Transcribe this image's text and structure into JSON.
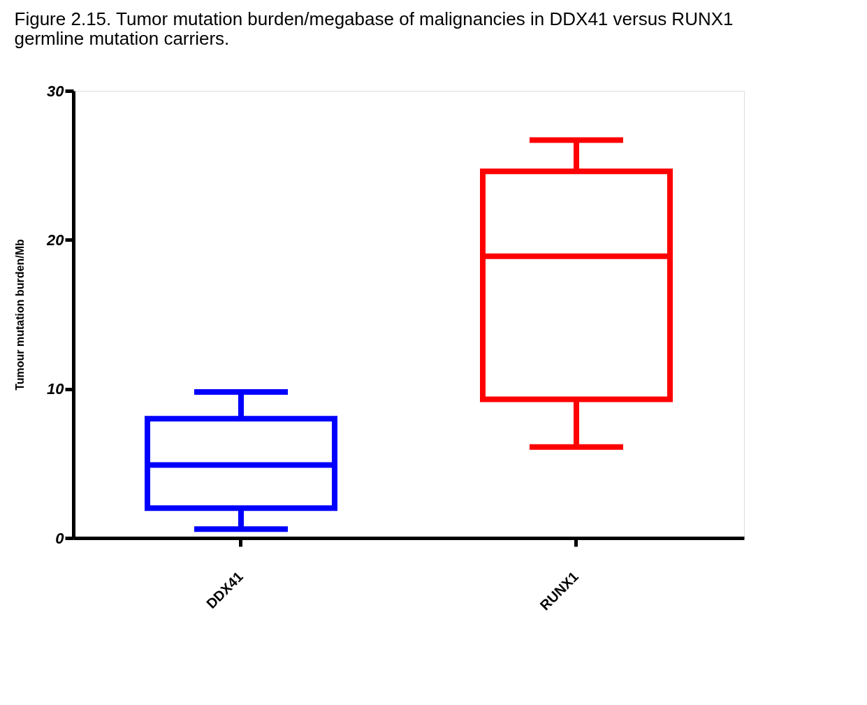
{
  "chart_data": {
    "type": "box",
    "title": "Figure 2.15. Tumor mutation burden/megabase of malignancies in DDX41 versus RUNX1 germline mutation carriers.",
    "ylabel": "Tumour mutation burden/Mb",
    "categories": [
      "DDX41",
      "RUNX1"
    ],
    "colors": [
      "#0000ff",
      "#ff0000"
    ],
    "boxes": [
      {
        "low": 0.6,
        "q1": 2.0,
        "median": 4.9,
        "q3": 8.0,
        "high": 9.8
      },
      {
        "low": 6.1,
        "q1": 9.3,
        "median": 18.9,
        "q3": 24.6,
        "high": 26.7
      }
    ],
    "ylim": [
      0,
      30
    ],
    "yticks": [
      0,
      10,
      20,
      30
    ],
    "grid": false
  }
}
